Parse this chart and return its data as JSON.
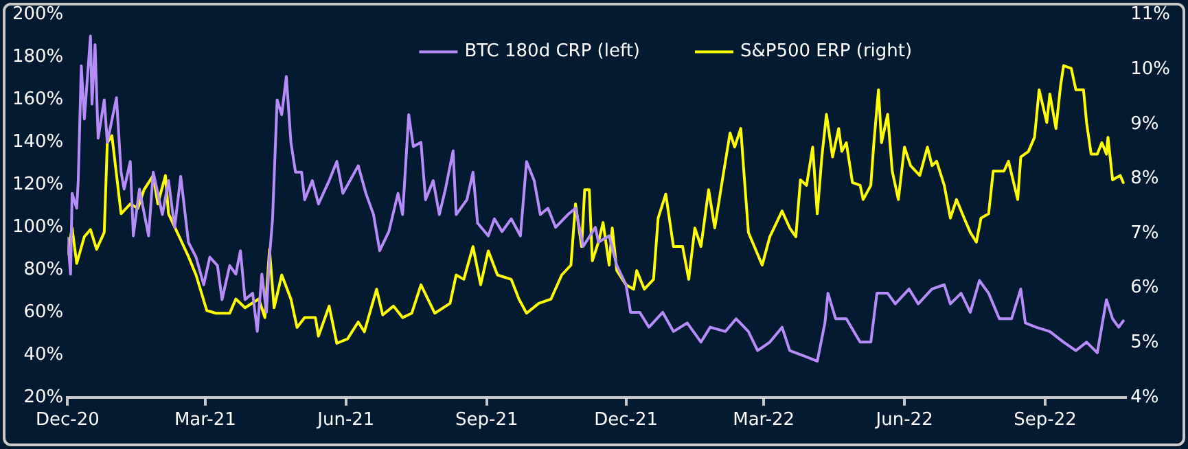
{
  "chart_data": {
    "type": "line",
    "legend": "top",
    "grid": false,
    "marker": "none",
    "line_style": "solid",
    "xlim": [
      "2020-12-01",
      "2022-10-24"
    ],
    "xticks": [
      {
        "value": "2020-12-01",
        "label": "Dec-20"
      },
      {
        "value": "2021-03-01",
        "label": "Mar-21"
      },
      {
        "value": "2021-06-01",
        "label": "Jun-21"
      },
      {
        "value": "2021-09-01",
        "label": "Sep-21"
      },
      {
        "value": "2021-12-01",
        "label": "Dec-21"
      },
      {
        "value": "2022-03-01",
        "label": "Mar-22"
      },
      {
        "value": "2022-06-01",
        "label": "Jun-22"
      },
      {
        "value": "2022-09-01",
        "label": "Sep-22"
      }
    ],
    "ylim": [
      20,
      200
    ],
    "yticks": [
      {
        "value": 20,
        "label": "20%"
      },
      {
        "value": 40,
        "label": "40%"
      },
      {
        "value": 60,
        "label": "60%"
      },
      {
        "value": 80,
        "label": "80%"
      },
      {
        "value": 100,
        "label": "100%"
      },
      {
        "value": 120,
        "label": "120%"
      },
      {
        "value": 140,
        "label": "140%"
      },
      {
        "value": 160,
        "label": "160%"
      },
      {
        "value": 180,
        "label": "180%"
      },
      {
        "value": 200,
        "label": "200%"
      }
    ],
    "y2lim": [
      4,
      11
    ],
    "y2ticks": [
      {
        "value": 4,
        "label": "4%"
      },
      {
        "value": 5,
        "label": "5%"
      },
      {
        "value": 6,
        "label": "6%"
      },
      {
        "value": 7,
        "label": "7%"
      },
      {
        "value": 8,
        "label": "8%"
      },
      {
        "value": 9,
        "label": "9%"
      },
      {
        "value": 10,
        "label": "10%"
      },
      {
        "value": 11,
        "label": "11%"
      }
    ],
    "series": [
      {
        "name": "BTC 180d CRP (left)",
        "color": "#b68cf8",
        "axis": "y",
        "x": [
          "2020-12-01",
          "2020-12-03",
          "2020-12-04",
          "2020-12-07",
          "2020-12-08",
          "2020-12-10",
          "2020-12-12",
          "2020-12-16",
          "2020-12-17",
          "2020-12-19",
          "2020-12-21",
          "2020-12-25",
          "2020-12-27",
          "2021-01-02",
          "2021-01-05",
          "2021-01-07",
          "2021-01-11",
          "2021-01-13",
          "2021-01-17",
          "2021-01-23",
          "2021-01-26",
          "2021-02-01",
          "2021-02-05",
          "2021-02-09",
          "2021-02-13",
          "2021-02-18",
          "2021-02-23",
          "2021-02-28",
          "2021-03-04",
          "2021-03-09",
          "2021-03-12",
          "2021-03-17",
          "2021-03-21",
          "2021-03-24",
          "2021-03-27",
          "2021-04-01",
          "2021-04-04",
          "2021-04-07",
          "2021-04-10",
          "2021-04-12",
          "2021-04-14",
          "2021-04-17",
          "2021-04-20",
          "2021-04-23",
          "2021-04-26",
          "2021-04-29",
          "2021-05-03",
          "2021-05-05",
          "2021-05-10",
          "2021-05-14",
          "2021-05-21",
          "2021-05-26",
          "2021-05-30",
          "2021-06-09",
          "2021-06-14",
          "2021-06-19",
          "2021-06-23",
          "2021-06-29",
          "2021-07-05",
          "2021-07-08",
          "2021-07-12",
          "2021-07-15",
          "2021-07-20",
          "2021-07-23",
          "2021-07-28",
          "2021-08-01",
          "2021-08-05",
          "2021-08-10",
          "2021-08-12",
          "2021-08-19",
          "2021-08-23",
          "2021-08-26",
          "2021-09-02",
          "2021-09-06",
          "2021-09-11",
          "2021-09-17",
          "2021-09-23",
          "2021-09-27",
          "2021-10-02",
          "2021-10-06",
          "2021-10-11",
          "2021-10-16",
          "2021-10-24",
          "2021-10-29",
          "2021-11-03",
          "2021-11-11",
          "2021-11-13",
          "2021-11-20",
          "2021-11-25",
          "2021-12-01",
          "2021-12-04",
          "2021-12-10",
          "2021-12-16",
          "2021-12-25",
          "2022-01-01",
          "2022-01-10",
          "2022-01-19",
          "2022-01-25",
          "2022-02-04",
          "2022-02-11",
          "2022-02-19",
          "2022-02-25",
          "2022-03-05",
          "2022-03-13",
          "2022-03-18",
          "2022-03-29",
          "2022-04-05",
          "2022-04-10",
          "2022-04-12",
          "2022-04-17",
          "2022-04-24",
          "2022-05-03",
          "2022-05-10",
          "2022-05-14",
          "2022-05-21",
          "2022-05-26",
          "2022-06-04",
          "2022-06-10",
          "2022-06-19",
          "2022-06-27",
          "2022-07-01",
          "2022-07-08",
          "2022-07-14",
          "2022-07-20",
          "2022-07-26",
          "2022-08-02",
          "2022-08-10",
          "2022-08-16",
          "2022-08-19",
          "2022-08-26",
          "2022-09-04",
          "2022-09-13",
          "2022-09-21",
          "2022-09-28",
          "2022-10-05",
          "2022-10-11",
          "2022-10-15",
          "2022-10-19",
          "2022-10-22"
        ],
        "values": [
          95,
          78,
          116,
          109,
          122,
          176,
          151,
          190,
          158,
          186,
          142,
          160,
          140,
          161,
          126,
          118,
          131,
          96,
          118,
          96,
          126,
          106,
          122,
          100,
          124,
          93,
          86,
          73,
          86,
          82,
          66,
          82,
          78,
          89,
          66,
          69,
          51,
          78,
          60,
          86,
          104,
          160,
          153,
          171,
          140,
          126,
          126,
          113,
          122,
          111,
          122,
          131,
          116,
          129,
          116,
          106,
          89,
          98,
          116,
          106,
          153,
          138,
          140,
          113,
          122,
          106,
          118,
          136,
          106,
          113,
          126,
          102,
          96,
          104,
          98,
          104,
          96,
          131,
          122,
          106,
          109,
          100,
          106,
          109,
          91,
          100,
          93,
          96,
          82,
          73,
          60,
          60,
          53,
          60,
          51,
          55,
          46,
          53,
          51,
          57,
          51,
          42,
          46,
          53,
          42,
          39,
          37,
          55,
          69,
          57,
          57,
          46,
          46,
          69,
          69,
          64,
          71,
          64,
          71,
          73,
          64,
          69,
          60,
          75,
          69,
          57,
          57,
          71,
          55,
          53,
          51,
          46,
          42,
          46,
          41,
          66,
          57,
          53,
          56
        ]
      },
      {
        "name": "S&P500 ERP (right)",
        "color": "#ffff00",
        "axis": "y2",
        "x": [
          "2020-12-01",
          "2020-12-04",
          "2020-12-07",
          "2020-12-12",
          "2020-12-16",
          "2020-12-20",
          "2020-12-25",
          "2020-12-27",
          "2020-12-30",
          "2021-01-05",
          "2021-01-11",
          "2021-01-16",
          "2021-01-20",
          "2021-01-26",
          "2021-01-29",
          "2021-02-03",
          "2021-02-05",
          "2021-02-12",
          "2021-02-18",
          "2021-02-23",
          "2021-03-02",
          "2021-03-08",
          "2021-03-17",
          "2021-03-21",
          "2021-03-27",
          "2021-04-05",
          "2021-04-09",
          "2021-04-12",
          "2021-04-15",
          "2021-04-20",
          "2021-04-26",
          "2021-04-30",
          "2021-05-05",
          "2021-05-12",
          "2021-05-14",
          "2021-05-21",
          "2021-05-26",
          "2021-06-02",
          "2021-06-09",
          "2021-06-13",
          "2021-06-21",
          "2021-06-25",
          "2021-07-02",
          "2021-07-08",
          "2021-07-14",
          "2021-07-20",
          "2021-07-29",
          "2021-08-08",
          "2021-08-12",
          "2021-08-17",
          "2021-08-23",
          "2021-08-28",
          "2021-09-02",
          "2021-09-08",
          "2021-09-17",
          "2021-09-22",
          "2021-09-27",
          "2021-10-05",
          "2021-10-13",
          "2021-10-20",
          "2021-10-26",
          "2021-10-29",
          "2021-11-02",
          "2021-11-04",
          "2021-11-07",
          "2021-11-09",
          "2021-11-13",
          "2021-11-16",
          "2021-11-20",
          "2021-11-22",
          "2021-11-25",
          "2021-12-01",
          "2021-12-06",
          "2021-12-08",
          "2021-12-13",
          "2021-12-19",
          "2021-12-22",
          "2021-12-27",
          "2022-01-01",
          "2022-01-07",
          "2022-01-11",
          "2022-01-15",
          "2022-01-19",
          "2022-01-24",
          "2022-01-28",
          "2022-02-02",
          "2022-02-07",
          "2022-02-10",
          "2022-02-14",
          "2022-02-16",
          "2022-02-19",
          "2022-02-28",
          "2022-03-05",
          "2022-03-13",
          "2022-03-18",
          "2022-03-22",
          "2022-03-25",
          "2022-03-29",
          "2022-04-02",
          "2022-04-05",
          "2022-04-08",
          "2022-04-11",
          "2022-04-15",
          "2022-04-19",
          "2022-04-21",
          "2022-04-24",
          "2022-04-28",
          "2022-05-03",
          "2022-05-05",
          "2022-05-10",
          "2022-05-12",
          "2022-05-15",
          "2022-05-17",
          "2022-05-21",
          "2022-05-24",
          "2022-05-28",
          "2022-06-01",
          "2022-06-05",
          "2022-06-11",
          "2022-06-16",
          "2022-06-19",
          "2022-06-22",
          "2022-06-27",
          "2022-07-01",
          "2022-07-05",
          "2022-07-10",
          "2022-07-14",
          "2022-07-18",
          "2022-07-21",
          "2022-07-26",
          "2022-07-29",
          "2022-08-05",
          "2022-08-08",
          "2022-08-14",
          "2022-08-16",
          "2022-08-21",
          "2022-08-25",
          "2022-08-28",
          "2022-09-02",
          "2022-09-04",
          "2022-09-08",
          "2022-09-11",
          "2022-09-13",
          "2022-09-18",
          "2022-09-21",
          "2022-09-26",
          "2022-09-28",
          "2022-10-01",
          "2022-10-05",
          "2022-10-08",
          "2022-10-11",
          "2022-10-12",
          "2022-10-15",
          "2022-10-20",
          "2022-10-22"
        ],
        "values": [
          6.63,
          7.1,
          6.45,
          6.94,
          7.07,
          6.71,
          7.02,
          8.66,
          8.79,
          7.36,
          7.54,
          7.46,
          7.8,
          8.06,
          7.54,
          8.06,
          7.36,
          6.94,
          6.58,
          6.24,
          5.59,
          5.54,
          5.54,
          5.8,
          5.64,
          5.8,
          5.46,
          6.71,
          5.64,
          6.24,
          5.8,
          5.28,
          5.46,
          5.46,
          5.12,
          5.67,
          4.99,
          5.07,
          5.38,
          5.2,
          5.98,
          5.51,
          5.67,
          5.46,
          5.54,
          6.06,
          5.54,
          5.72,
          6.24,
          6.16,
          6.76,
          6.06,
          6.68,
          6.24,
          6.16,
          5.8,
          5.54,
          5.72,
          5.8,
          6.24,
          6.42,
          7.54,
          6.76,
          7.8,
          7.8,
          6.5,
          6.84,
          7.2,
          6.42,
          7.1,
          6.32,
          6.06,
          5.98,
          6.32,
          5.98,
          6.16,
          7.28,
          7.72,
          6.76,
          6.76,
          6.16,
          7.1,
          6.76,
          7.8,
          7.1,
          7.98,
          8.84,
          8.58,
          8.92,
          8.14,
          7.02,
          6.42,
          6.94,
          7.41,
          7.1,
          6.94,
          7.98,
          7.88,
          8.58,
          7.36,
          8.4,
          9.18,
          8.4,
          8.92,
          8.5,
          8.66,
          7.93,
          7.88,
          7.62,
          7.88,
          8.66,
          9.63,
          8.66,
          9.18,
          8.14,
          7.62,
          8.58,
          8.24,
          8.06,
          8.58,
          8.24,
          8.32,
          7.88,
          7.28,
          7.62,
          7.28,
          7.02,
          6.84,
          7.28,
          7.36,
          8.14,
          8.14,
          8.32,
          7.62,
          8.4,
          8.5,
          8.76,
          9.63,
          9.03,
          9.55,
          8.92,
          9.7,
          10.07,
          10.02,
          9.63,
          9.63,
          9.03,
          8.45,
          8.45,
          8.66,
          8.45,
          8.76,
          7.98,
          8.06,
          7.93
        ]
      }
    ]
  }
}
